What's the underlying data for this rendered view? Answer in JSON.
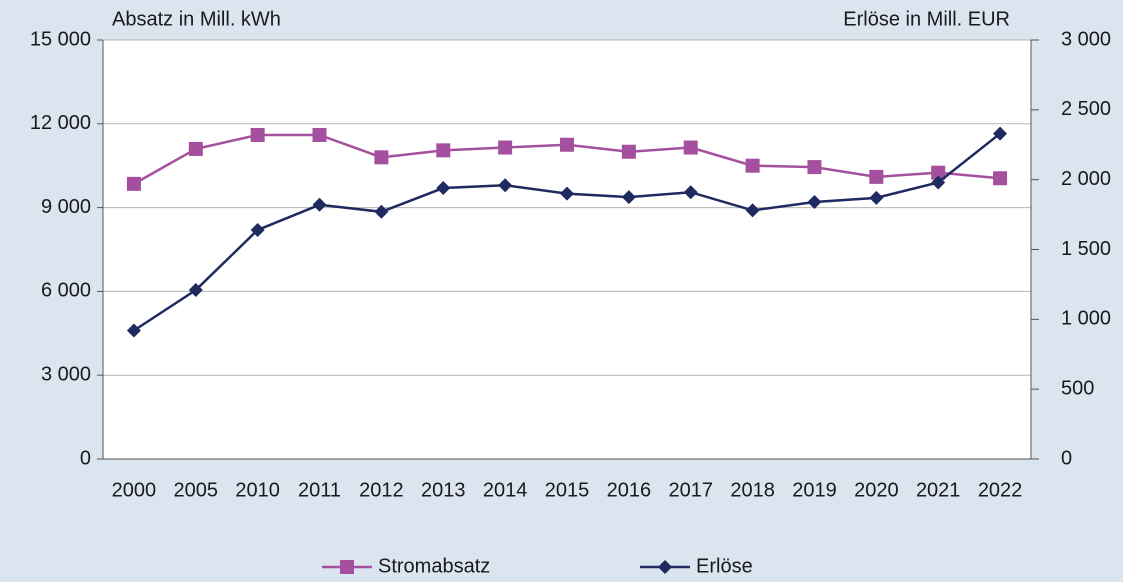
{
  "chart_data": {
    "type": "line",
    "y_label": "Absatz in Mill. kWh",
    "y2_label": "Erlöse in Mill. EUR",
    "categories": [
      "2000",
      "2005",
      "2010",
      "2011",
      "2012",
      "2013",
      "2014",
      "2015",
      "2016",
      "2017",
      "2018",
      "2019",
      "2020",
      "2021",
      "2022"
    ],
    "series": [
      {
        "name": "Stromabsatz",
        "color": "#a4509e",
        "marker": "square",
        "axis": "y",
        "values": [
          9850,
          11100,
          11600,
          11600,
          10800,
          11050,
          11150,
          11250,
          11000,
          11150,
          10500,
          10450,
          10100,
          10250,
          10050
        ]
      },
      {
        "name": "Erlöse",
        "color": "#1f2a60",
        "marker": "diamond",
        "axis": "y2",
        "values": [
          920,
          1210,
          1640,
          1820,
          1770,
          1940,
          1960,
          1900,
          1875,
          1910,
          1780,
          1840,
          1870,
          1980,
          2330
        ]
      }
    ],
    "ylim": [
      0,
      15000
    ],
    "yticks": [
      0,
      {
        "value": 3000,
        "label": "3 000"
      },
      {
        "value": 6000,
        "label": "6 000"
      },
      {
        "value": 9000,
        "label": "9 000"
      },
      {
        "value": 12000,
        "label": "12 000"
      },
      {
        "value": 15000,
        "label": "15 000"
      }
    ],
    "y2lim": [
      0,
      3000
    ],
    "y2ticks": [
      0,
      500,
      {
        "value": 1000,
        "label": "1 000"
      },
      {
        "value": 1500,
        "label": "1 500"
      },
      {
        "value": 2000,
        "label": "2 000"
      },
      {
        "value": 2500,
        "label": "2 500"
      },
      {
        "value": 3000,
        "label": "3 000"
      }
    ],
    "grid": true,
    "legend": "bottom"
  }
}
